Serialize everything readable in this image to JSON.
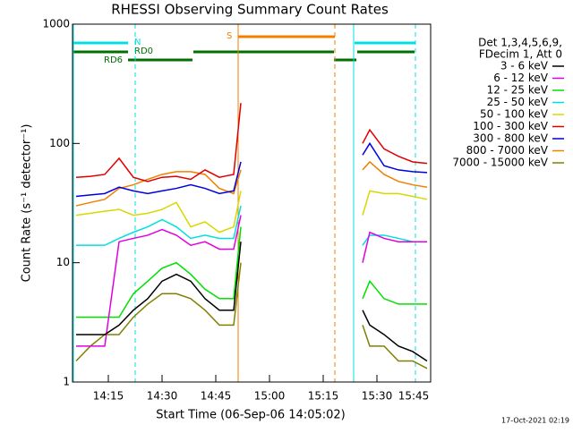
{
  "chart_data": {
    "type": "line",
    "title": "RHESSI Observing Summary Count Rates",
    "xlabel": "Start Time (06-Sep-06 14:05:02)",
    "ylabel": "Count Rate (s⁻¹ detector⁻¹)",
    "log_y": true,
    "xlim": [
      "14:05",
      "15:45"
    ],
    "xticks": [
      "14:15",
      "14:30",
      "14:45",
      "15:00",
      "15:15",
      "15:30",
      "15:45"
    ],
    "ylim": [
      1,
      1000
    ],
    "yticks": [
      1,
      10,
      100,
      1000
    ],
    "legend_header": [
      "Det 1,3,4,5,6,9,",
      "FDecim 1, Att 0"
    ],
    "annotations": {
      "night": "N",
      "saa": "S",
      "rd0": "RD0",
      "rd6": "RD6"
    },
    "footer": "17-Oct-2021 02:19",
    "x": [
      "14:06",
      "14:10",
      "14:14",
      "14:18",
      "14:22",
      "14:26",
      "14:30",
      "14:34",
      "14:38",
      "14:42",
      "14:46",
      "14:50",
      "14:52",
      "15:10",
      "15:26",
      "15:28",
      "15:32",
      "15:36",
      "15:40",
      "15:44"
    ],
    "series": [
      {
        "name": "3 - 6 keV",
        "color": "#000000",
        "values": [
          2.5,
          2.5,
          2.5,
          3,
          4,
          5,
          7,
          8,
          7,
          5,
          4,
          4,
          15,
          null,
          4,
          3,
          2.5,
          2,
          1.8,
          1.5
        ]
      },
      {
        "name": "6 - 12 keV",
        "color": "#e000e0",
        "values": [
          2,
          2,
          2,
          15,
          16,
          17,
          19,
          17,
          14,
          15,
          13,
          13,
          25,
          null,
          10,
          18,
          16,
          15,
          15,
          15
        ]
      },
      {
        "name": "12 - 25 keV",
        "color": "#00e000",
        "values": [
          3.5,
          3.5,
          3.5,
          3.5,
          5.5,
          7,
          9,
          10,
          8,
          6,
          5,
          5,
          20,
          null,
          5,
          7,
          5,
          4.5,
          4.5,
          4.5
        ]
      },
      {
        "name": "25 - 50 keV",
        "color": "#00e0e0",
        "values": [
          14,
          14,
          14,
          16,
          18,
          20,
          23,
          20,
          16,
          17,
          16,
          16,
          30,
          null,
          14,
          17,
          17,
          16,
          15,
          15
        ]
      },
      {
        "name": "50 - 100 keV",
        "color": "#d8d800",
        "values": [
          25,
          26,
          27,
          28,
          25,
          26,
          28,
          32,
          20,
          22,
          18,
          20,
          40,
          null,
          25,
          40,
          38,
          38,
          36,
          34
        ]
      },
      {
        "name": "100 - 300 keV",
        "color": "#e00000",
        "values": [
          52,
          53,
          55,
          75,
          52,
          48,
          52,
          53,
          50,
          60,
          52,
          55,
          218,
          null,
          100,
          130,
          90,
          78,
          70,
          68
        ]
      },
      {
        "name": "300 - 800 keV",
        "color": "#0000e0",
        "values": [
          36,
          37,
          38,
          43,
          40,
          38,
          40,
          42,
          45,
          42,
          38,
          40,
          70,
          null,
          80,
          100,
          65,
          60,
          58,
          57
        ]
      },
      {
        "name": "800 - 7000 keV",
        "color": "#f08000",
        "values": [
          30,
          32,
          34,
          42,
          45,
          50,
          55,
          58,
          58,
          55,
          42,
          38,
          60,
          null,
          60,
          70,
          55,
          48,
          45,
          43
        ]
      },
      {
        "name": "7000 - 15000 keV",
        "color": "#808000",
        "values": [
          1.5,
          2,
          2.5,
          2.5,
          3.5,
          4.5,
          5.5,
          5.5,
          5,
          4,
          3,
          3,
          10,
          null,
          3,
          2,
          2,
          1.5,
          1.5,
          1.3
        ]
      }
    ]
  }
}
